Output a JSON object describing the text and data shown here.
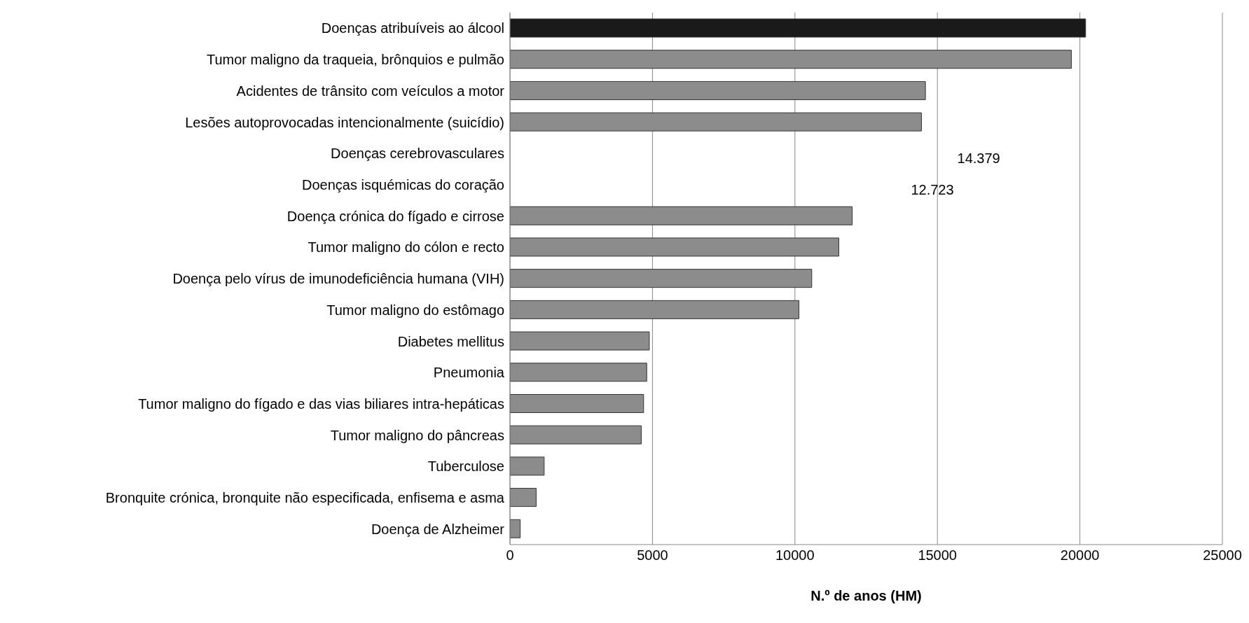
{
  "chart_data": {
    "type": "bar",
    "orientation": "horizontal",
    "xlabel": "N.º de anos (HM)",
    "categories": [
      "Doenças atribuíveis ao álcool",
      "Tumor maligno da traqueia, brônquios e pulmão",
      "Acidentes de trânsito com veículos a motor",
      "Lesões autoprovocadas intencionalmente (suicídio)",
      "Doenças cerebrovasculares",
      "Doenças isquémicas do coração",
      "Doença crónica do fígado e cirrose",
      "Tumor maligno do cólon e recto",
      "Doença pelo vírus de imunodeficiência humana (VIH)",
      "Tumor maligno do estômago",
      "Diabetes mellitus",
      "Pneumonia",
      "Tumor maligno do fígado e das vias biliares intra-hepáticas",
      "Tumor maligno do pâncreas",
      "Tuberculose",
      "Bronquite crónica, bronquite não especificada, enfisema e asma",
      "Doença de Alzheimer"
    ],
    "values": [
      20200,
      19700,
      14580,
      14440,
      null,
      null,
      12010,
      11540,
      10590,
      10140,
      4890,
      4800,
      4690,
      4610,
      1200,
      920,
      360
    ],
    "colors": [
      "#1a1a1a",
      "#8c8c8c",
      "#8c8c8c",
      "#8c8c8c",
      "#8c8c8c",
      "#8c8c8c",
      "#8c8c8c",
      "#8c8c8c",
      "#8c8c8c",
      "#8c8c8c",
      "#8c8c8c",
      "#8c8c8c",
      "#8c8c8c",
      "#8c8c8c",
      "#8c8c8c",
      "#8c8c8c",
      "#8c8c8c"
    ],
    "annotations": [
      "14.379",
      "12.723"
    ],
    "xlim": [
      0,
      25000
    ],
    "xticks": [
      0,
      5000,
      10000,
      15000,
      20000,
      25000
    ],
    "grid": "x"
  }
}
